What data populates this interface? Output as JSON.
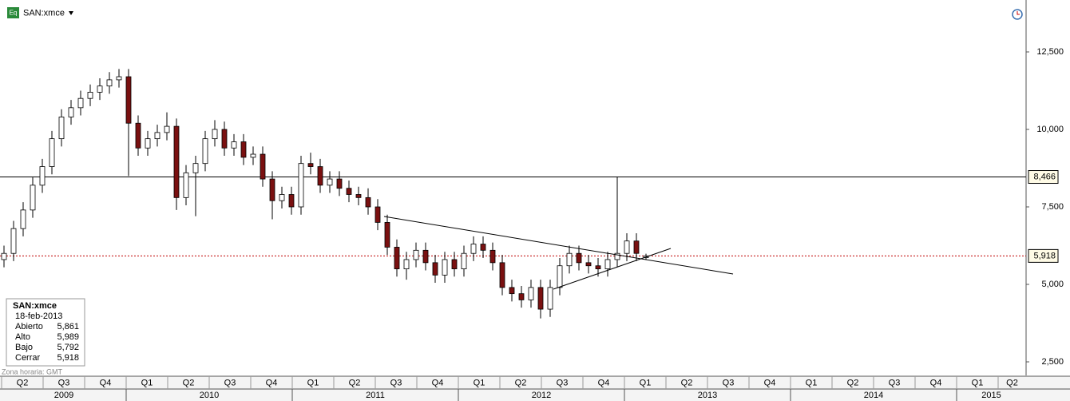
{
  "chart_data": {
    "type": "candlestick",
    "series": [
      {
        "name": "SAN:xmce",
        "up_color": "#ffffff",
        "down_color": "#7a1010",
        "open": [
          5.8,
          6.0,
          6.8,
          7.4,
          8.2,
          8.8,
          9.7,
          10.4,
          10.7,
          11.0,
          11.2,
          11.4,
          11.6,
          11.7,
          10.2,
          9.4,
          9.7,
          9.9,
          10.1,
          7.8,
          8.6,
          8.9,
          9.7,
          10.0,
          9.4,
          9.6,
          9.1,
          9.2,
          8.4,
          7.7,
          7.9,
          7.5,
          8.9,
          8.8,
          8.2,
          8.4,
          8.1,
          7.9,
          7.8,
          7.5,
          7.0,
          6.2,
          5.5,
          5.8,
          6.1,
          5.7,
          5.3,
          5.8,
          5.5,
          6.0,
          6.3,
          6.1,
          5.7,
          4.9,
          4.7,
          4.5,
          4.9,
          4.2,
          4.9,
          5.6,
          6.0,
          5.7,
          5.6,
          5.5,
          5.8,
          6.0,
          6.4,
          5.861
        ],
        "high": [
          6.25,
          7.05,
          7.65,
          8.45,
          9.05,
          9.95,
          10.65,
          10.95,
          11.25,
          11.45,
          11.65,
          11.85,
          11.95,
          11.95,
          10.45,
          9.95,
          10.15,
          10.55,
          10.35,
          8.85,
          9.15,
          9.95,
          10.3,
          10.25,
          9.85,
          9.85,
          9.45,
          9.45,
          8.65,
          8.15,
          8.15,
          9.15,
          9.25,
          9.05,
          8.65,
          8.65,
          8.35,
          8.15,
          8.1,
          7.75,
          7.25,
          6.45,
          6.05,
          6.35,
          6.35,
          5.95,
          6.05,
          6.05,
          6.25,
          6.55,
          6.55,
          6.35,
          5.95,
          5.15,
          4.95,
          5.15,
          5.15,
          5.15,
          5.85,
          6.25,
          6.25,
          5.95,
          5.85,
          6.05,
          8.466,
          6.65,
          6.65,
          5.989
        ],
        "low": [
          5.55,
          5.75,
          6.55,
          7.15,
          7.95,
          8.55,
          9.45,
          10.15,
          10.45,
          10.75,
          10.95,
          11.15,
          11.35,
          8.5,
          9.15,
          9.15,
          9.45,
          9.65,
          7.4,
          7.55,
          7.2,
          8.65,
          9.45,
          9.15,
          9.15,
          8.85,
          8.85,
          8.15,
          7.1,
          7.45,
          7.25,
          7.25,
          8.55,
          7.95,
          7.95,
          7.85,
          7.65,
          7.55,
          7.25,
          6.75,
          5.95,
          5.25,
          5.15,
          5.55,
          5.45,
          5.05,
          5.05,
          5.25,
          5.25,
          5.75,
          5.85,
          5.45,
          4.65,
          4.45,
          4.25,
          4.25,
          3.9,
          3.95,
          4.65,
          5.35,
          5.45,
          5.35,
          5.25,
          5.25,
          5.55,
          5.75,
          5.75,
          5.792
        ],
        "close": [
          6.0,
          6.8,
          7.4,
          8.2,
          8.8,
          9.7,
          10.4,
          10.7,
          11.0,
          11.2,
          11.4,
          11.6,
          11.7,
          10.2,
          9.4,
          9.7,
          9.9,
          10.1,
          7.8,
          8.6,
          8.9,
          9.7,
          10.0,
          9.4,
          9.6,
          9.1,
          9.2,
          8.4,
          7.7,
          7.9,
          7.5,
          8.9,
          8.8,
          8.2,
          8.4,
          8.1,
          7.9,
          7.8,
          7.5,
          7.0,
          6.2,
          5.5,
          5.8,
          6.1,
          5.7,
          5.3,
          5.8,
          5.5,
          6.0,
          6.3,
          6.1,
          5.7,
          4.9,
          4.7,
          4.5,
          4.9,
          4.2,
          4.9,
          5.6,
          6.0,
          5.7,
          5.6,
          5.5,
          5.8,
          6.0,
          6.4,
          6.0,
          5.918
        ]
      }
    ],
    "ylim": [
      2.062,
      14.175
    ],
    "yticks": [
      {
        "value": 2.5,
        "label": "2,500"
      },
      {
        "value": 5,
        "label": "5,000"
      },
      {
        "value": 7.5,
        "label": "7,500"
      },
      {
        "value": 10,
        "label": "10,000"
      },
      {
        "value": 12.5,
        "label": "12,500"
      }
    ],
    "reference_lines": [
      {
        "value": 8.466,
        "label": "8,466",
        "color": "#000000",
        "style": "solid"
      },
      {
        "value": 5.918,
        "label": "5,918",
        "color": "#c00000",
        "style": "dotted"
      }
    ],
    "quarters": [
      "Q2",
      "Q3",
      "Q4",
      "Q1",
      "Q2",
      "Q3",
      "Q4",
      "Q1",
      "Q2",
      "Q3",
      "Q4",
      "Q1",
      "Q2",
      "Q3",
      "Q4",
      "Q1",
      "Q2",
      "Q3",
      "Q4",
      "Q1",
      "Q2",
      "Q3",
      "Q4",
      "Q1",
      "Q2"
    ],
    "years": [
      "2009",
      "2010",
      "2011",
      "2012",
      "2013",
      "2014",
      "2015"
    ],
    "timezone": "Zona horaria: GMT",
    "info": {
      "date": "18-feb-2013",
      "rows": [
        [
          "Abierto",
          "5,861"
        ],
        [
          "Alto",
          "5,989"
        ],
        [
          "Bajo",
          "5,792"
        ],
        [
          "Cerrar",
          "5,918"
        ]
      ]
    }
  }
}
